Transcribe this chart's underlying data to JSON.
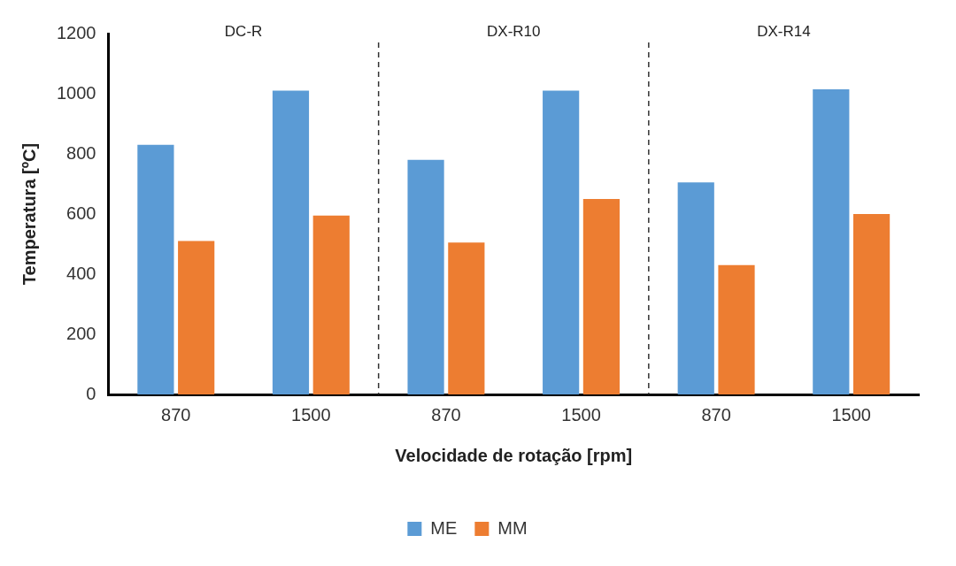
{
  "chart_data": {
    "type": "bar",
    "xlabel": "Velocidade de rotação [rpm]",
    "ylabel": "Temperatura [ºC]",
    "categories": [
      "870",
      "1500",
      "870",
      "1500",
      "870",
      "1500"
    ],
    "series": [
      {
        "name": "ME",
        "color": "#5b9bd5",
        "values": [
          830,
          1010,
          780,
          1010,
          705,
          1015
        ]
      },
      {
        "name": "MM",
        "color": "#ed7d31",
        "values": [
          510,
          595,
          505,
          650,
          430,
          600
        ]
      }
    ],
    "ylim": [
      0,
      1200
    ],
    "yticks": [
      0,
      200,
      400,
      600,
      800,
      1000,
      1200
    ],
    "grid": false,
    "legend": "bottom",
    "annotations": [
      "DC-R",
      "DX-R10",
      "DX-R14"
    ]
  }
}
